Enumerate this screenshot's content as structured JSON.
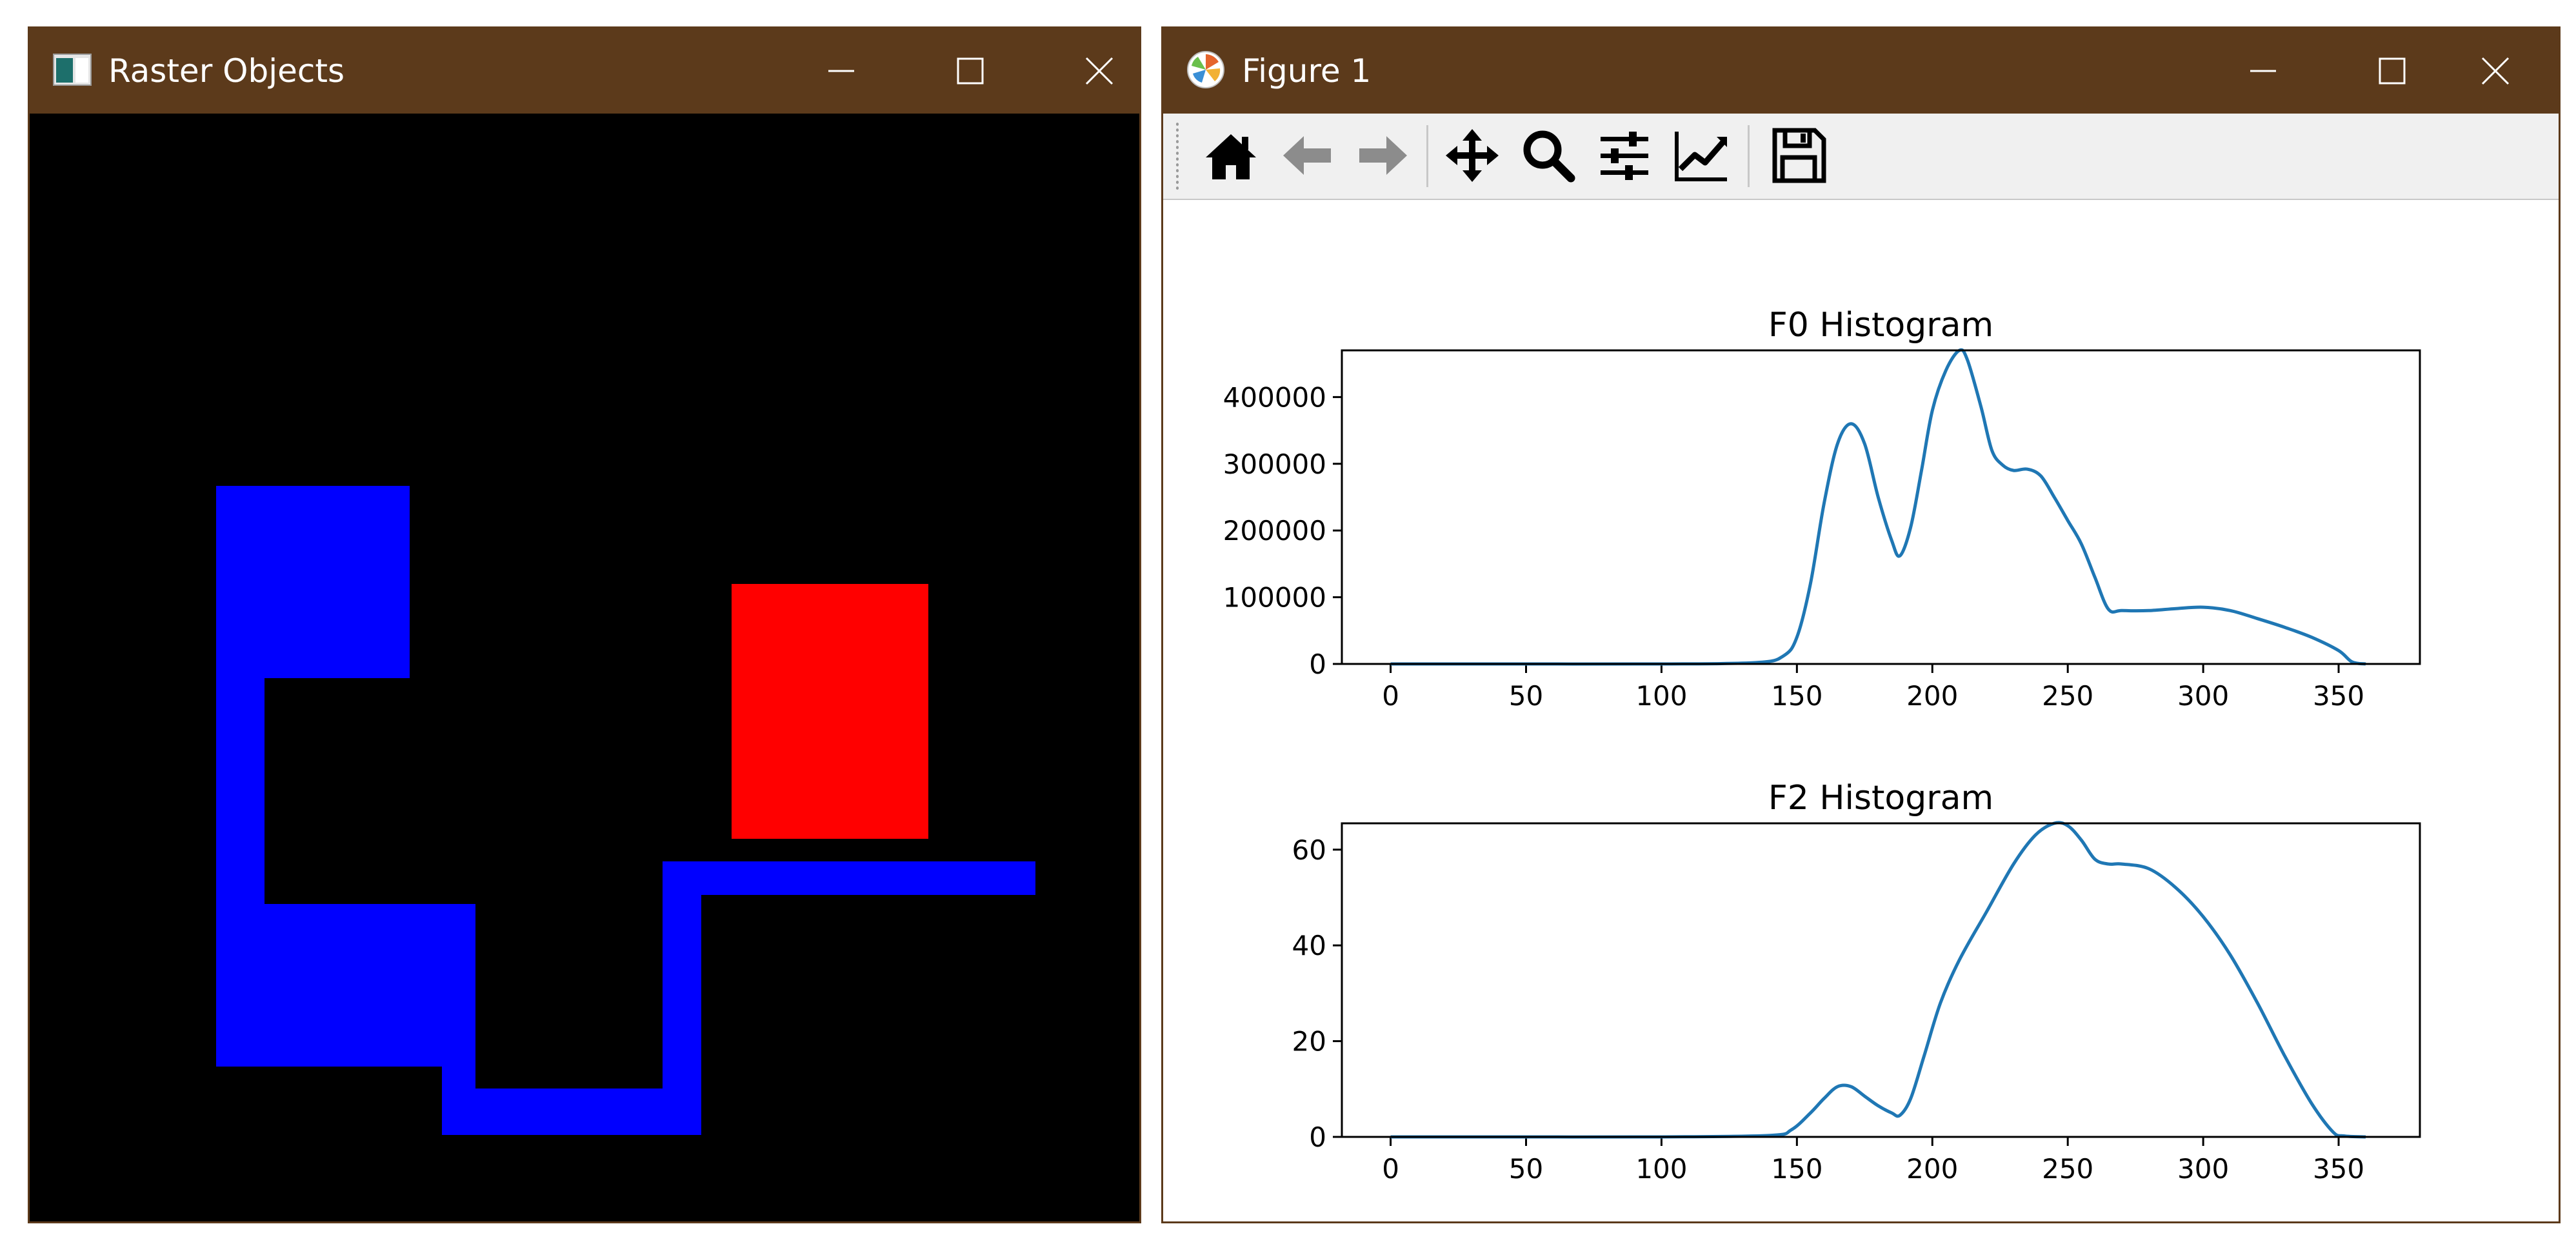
{
  "raster_window": {
    "title": "Raster Objects",
    "colors": {
      "background": "#000000",
      "blue": "#0000ff",
      "red": "#ff0000",
      "titlebar": "#5c3a1b"
    }
  },
  "figure_window": {
    "title": "Figure 1",
    "toolbar": [
      "home-icon",
      "back-arrow-icon",
      "forward-arrow-icon",
      "pan-icon",
      "zoom-icon",
      "subplots-icon",
      "edit-axes-icon",
      "save-icon"
    ],
    "line_color": "#1f77b4"
  },
  "chart_data": [
    {
      "type": "line",
      "title": "F0 Histogram",
      "xlabel": "",
      "ylabel": "",
      "xlim": [
        -18,
        380
      ],
      "ylim": [
        0,
        470000
      ],
      "xticks": [
        0,
        50,
        100,
        150,
        200,
        250,
        300,
        350
      ],
      "yticks": [
        0,
        100000,
        200000,
        300000,
        400000
      ],
      "x": [
        0,
        50,
        100,
        135,
        145,
        150,
        155,
        160,
        165,
        170,
        175,
        180,
        185,
        188,
        192,
        196,
        200,
        205,
        210,
        213,
        218,
        222,
        226,
        230,
        235,
        240,
        245,
        250,
        255,
        260,
        265,
        270,
        280,
        290,
        300,
        310,
        320,
        330,
        340,
        350,
        355,
        360
      ],
      "y": [
        0,
        0,
        0,
        2000,
        12000,
        40000,
        120000,
        240000,
        330000,
        360000,
        330000,
        250000,
        185000,
        162000,
        205000,
        290000,
        380000,
        440000,
        470000,
        455000,
        385000,
        320000,
        298000,
        290000,
        292000,
        282000,
        250000,
        215000,
        180000,
        130000,
        82000,
        80000,
        80000,
        83000,
        85000,
        80000,
        68000,
        55000,
        40000,
        20000,
        3000,
        0
      ]
    },
    {
      "type": "line",
      "title": "F2 Histogram",
      "xlabel": "",
      "ylabel": "",
      "xlim": [
        -18,
        380
      ],
      "ylim": [
        0,
        65.5
      ],
      "xticks": [
        0,
        50,
        100,
        150,
        200,
        250,
        300,
        350
      ],
      "yticks": [
        0,
        20,
        40,
        60
      ],
      "x": [
        0,
        50,
        100,
        140,
        148,
        155,
        160,
        165,
        170,
        175,
        180,
        185,
        188,
        192,
        197,
        203,
        210,
        220,
        230,
        238,
        245,
        250,
        255,
        260,
        265,
        270,
        280,
        290,
        300,
        310,
        320,
        330,
        340,
        348,
        352,
        360
      ],
      "y": [
        0,
        0,
        0,
        0.3,
        1.5,
        5,
        8,
        10.5,
        10.5,
        8.5,
        6.5,
        5,
        4.5,
        8,
        17,
        28,
        37,
        47,
        57,
        63,
        65.5,
        65,
        62,
        58,
        57,
        57,
        56,
        52,
        46,
        38,
        28,
        17,
        7,
        1,
        0.2,
        0
      ]
    }
  ]
}
